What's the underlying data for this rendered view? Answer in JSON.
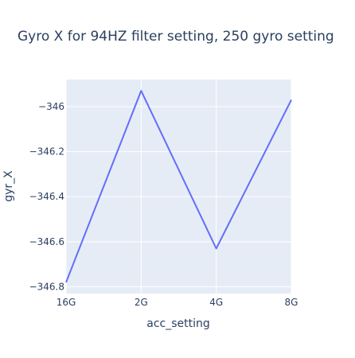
{
  "chart_data": {
    "type": "line",
    "title": "Gyro X for 94HZ filter setting, 250 gyro setting",
    "xlabel": "acc_setting",
    "ylabel": "gyr_X",
    "categories": [
      "16G",
      "2G",
      "4G",
      "8G"
    ],
    "series": [
      {
        "values": [
          -346.78,
          -345.93,
          -346.63,
          -345.97
        ]
      }
    ],
    "ylim": [
      -346.83,
      -345.88
    ],
    "yticks": [
      -346,
      -346.2,
      -346.4,
      -346.6,
      -346.8
    ],
    "ytick_labels": [
      "−346",
      "−346.2",
      "−346.4",
      "−346.6",
      "−346.8"
    ],
    "grid": true,
    "line_color": "#636efa",
    "plot_bg": "#e5ecf6",
    "grid_color": "#ffffff"
  }
}
